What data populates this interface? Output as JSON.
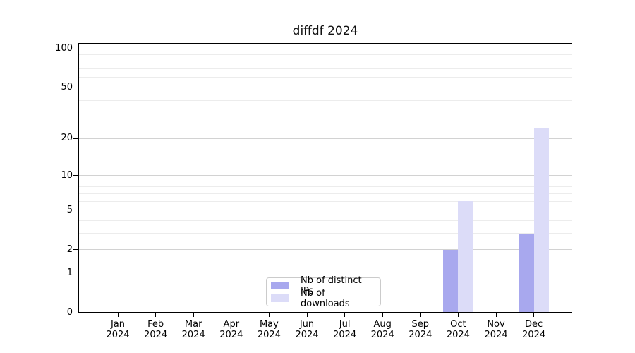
{
  "chart_data": {
    "type": "bar",
    "title": "diffdf 2024",
    "categories": [
      "Jan",
      "Feb",
      "Mar",
      "Apr",
      "May",
      "Jun",
      "Jul",
      "Aug",
      "Sep",
      "Oct",
      "Nov",
      "Dec"
    ],
    "category_year": "2024",
    "series": [
      {
        "name": "Nb of distinct IPs",
        "color": "#a8a8ee",
        "values": [
          0,
          0,
          0,
          0,
          0,
          0,
          0,
          0,
          0,
          2,
          0,
          3
        ]
      },
      {
        "name": "Nb of downloads",
        "color": "#dcdcf8",
        "values": [
          0,
          0,
          0,
          0,
          0,
          0,
          0,
          0,
          0,
          6,
          0,
          24
        ]
      }
    ],
    "y_axis": {
      "scale": "log10(value+1)",
      "major_ticks": [
        0,
        1,
        2,
        5,
        10,
        20,
        50,
        100
      ],
      "minor_ticks": [
        3,
        4,
        6,
        7,
        8,
        9,
        30,
        40,
        60,
        70,
        80,
        90
      ],
      "ylim": [
        0,
        110
      ]
    },
    "xlabel": "",
    "ylabel": "",
    "grid": "horizontal, major and minor",
    "legend": {
      "position": "lower center",
      "entries": [
        "Nb of distinct IPs",
        "Nb of downloads"
      ]
    },
    "colors": {
      "distinct_ips": "#a8a8ee",
      "downloads": "#dcdcf8",
      "grid_major": "#d2d2d2",
      "grid_minor": "#ececec",
      "axis": "#000000",
      "background": "#ffffff"
    }
  }
}
